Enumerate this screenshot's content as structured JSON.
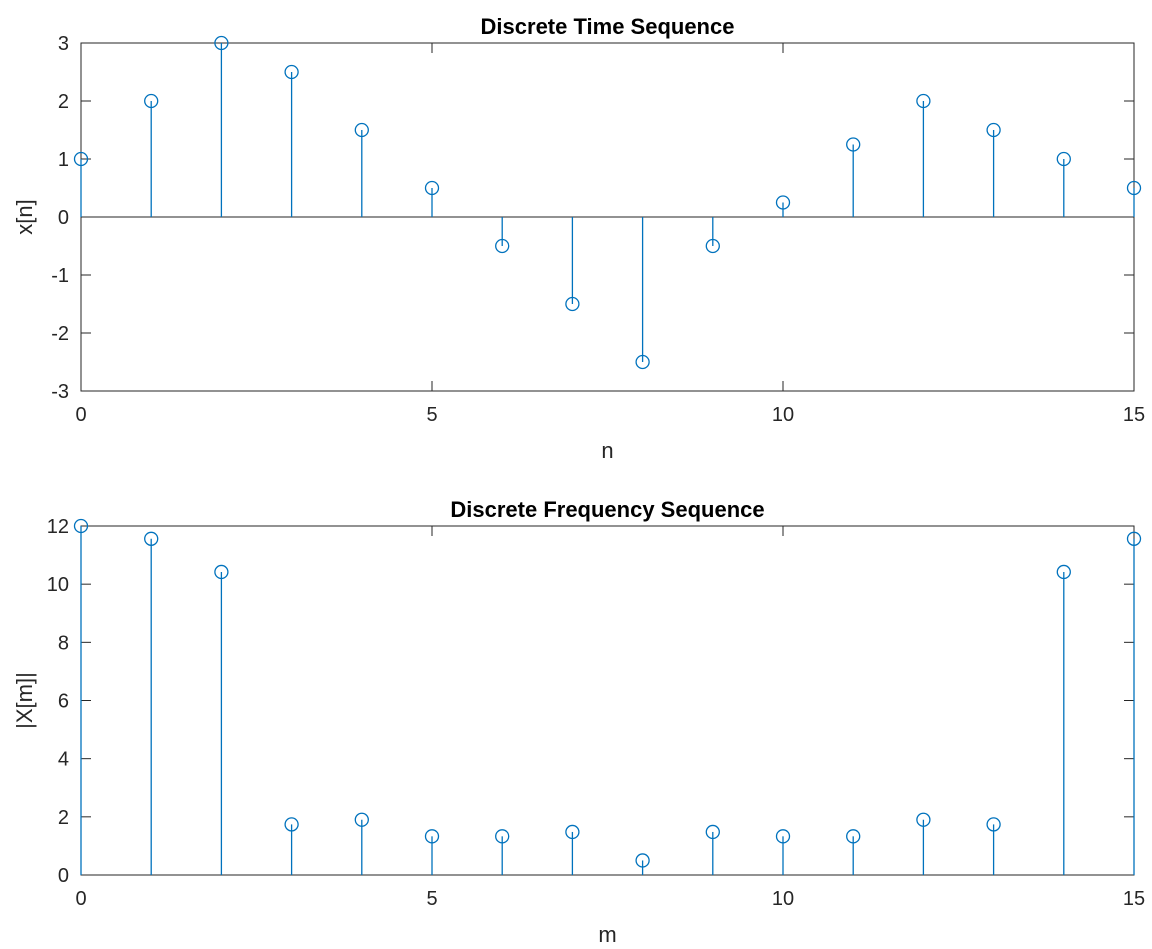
{
  "stem_color": "#0072BD",
  "chart_data": [
    {
      "type": "stem",
      "title": "Discrete Time Sequence",
      "xlabel": "n",
      "ylabel": "x[n]",
      "xlim": [
        0,
        15
      ],
      "ylim": [
        -3,
        3
      ],
      "xticks": [
        0,
        5,
        10,
        15
      ],
      "yticks": [
        -3,
        -2,
        -1,
        0,
        1,
        2,
        3
      ],
      "grid": false,
      "legend": "none",
      "x": [
        0,
        1,
        2,
        3,
        4,
        5,
        6,
        7,
        8,
        9,
        10,
        11,
        12,
        13,
        14,
        15
      ],
      "y": [
        1,
        2,
        3,
        2.5,
        1.5,
        0.5,
        -0.5,
        -1.5,
        -2.5,
        -0.5,
        0.25,
        1.25,
        2,
        1.5,
        1,
        0.5
      ]
    },
    {
      "type": "stem",
      "title": "Discrete Frequency Sequence",
      "xlabel": "m",
      "ylabel": "|X[m]|",
      "xlim": [
        0,
        15
      ],
      "ylim": [
        0,
        12
      ],
      "xticks": [
        0,
        5,
        10,
        15
      ],
      "yticks": [
        0,
        2,
        4,
        6,
        8,
        10,
        12
      ],
      "grid": false,
      "legend": "none",
      "x": [
        0,
        1,
        2,
        3,
        4,
        5,
        6,
        7,
        8,
        9,
        10,
        11,
        12,
        13,
        14,
        15
      ],
      "y": [
        12,
        11.56,
        10.42,
        1.74,
        1.9,
        1.33,
        1.33,
        1.48,
        0.5,
        1.48,
        1.33,
        1.33,
        1.9,
        1.74,
        10.42,
        11.56
      ]
    }
  ]
}
